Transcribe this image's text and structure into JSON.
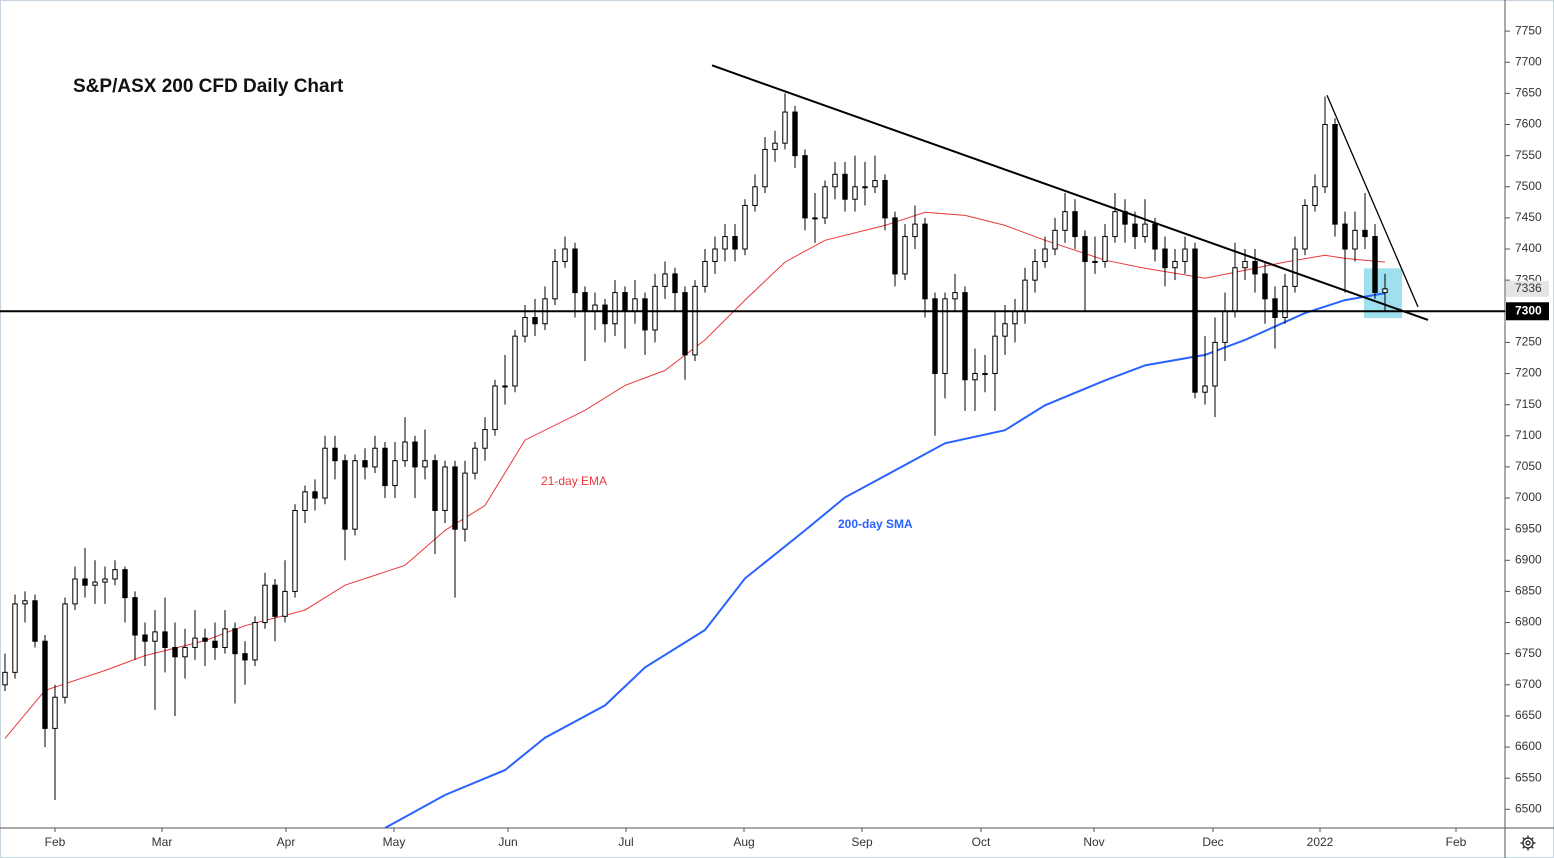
{
  "chart_data": {
    "type": "candlestick",
    "title": "S&P/ASX 200 CFD Daily Chart",
    "ylim": [
      6470,
      7800
    ],
    "yticks": [
      6500,
      6550,
      6600,
      6650,
      6700,
      6750,
      6800,
      6850,
      6900,
      6950,
      7000,
      7050,
      7100,
      7150,
      7200,
      7250,
      7300,
      7350,
      7400,
      7450,
      7500,
      7550,
      7600,
      7650,
      7700,
      7750
    ],
    "xlim": [
      -0.5,
      150
    ],
    "xticks": [
      {
        "value": 5,
        "label": "Feb"
      },
      {
        "value": 15.7,
        "label": "Mar"
      },
      {
        "value": 28.1,
        "label": "Apr"
      },
      {
        "value": 38.9,
        "label": "May"
      },
      {
        "value": 50.3,
        "label": "Jun"
      },
      {
        "value": 62.1,
        "label": "Jul"
      },
      {
        "value": 73.9,
        "label": "Aug"
      },
      {
        "value": 85.7,
        "label": "Sep"
      },
      {
        "value": 97.6,
        "label": "Oct"
      },
      {
        "value": 108.9,
        "label": "Nov"
      },
      {
        "value": 120.8,
        "label": "Dec"
      },
      {
        "value": 131.5,
        "label": "2022"
      },
      {
        "value": 145.1,
        "label": "Feb"
      }
    ],
    "up_color": "#ffffff",
    "down_color": "#000000",
    "candles": {
      "open": [
        6700,
        6720,
        6830,
        6835,
        6770,
        6630,
        6680,
        6830,
        6870,
        6860,
        6865,
        6870,
        6885,
        6840,
        6780,
        6770,
        6785,
        6760,
        6745,
        6760,
        6775,
        6770,
        6760,
        6790,
        6750,
        6740,
        6800,
        6860,
        6810,
        6850,
        6980,
        7010,
        7000,
        7080,
        7060,
        6950,
        7060,
        7050,
        7080,
        7020,
        7060,
        7090,
        7050,
        7060,
        6980,
        7050,
        6950,
        7040,
        7080,
        7110,
        7180,
        7180,
        7260,
        7290,
        7280,
        7320,
        7380,
        7400,
        7330,
        7300,
        7310,
        7280,
        7330,
        7300,
        7320,
        7270,
        7340,
        7360,
        7330,
        7230,
        7340,
        7380,
        7400,
        7420,
        7400,
        7470,
        7500,
        7560,
        7570,
        7620,
        7550,
        7450,
        7450,
        7500,
        7520,
        7480,
        7500,
        7500,
        7510,
        7450,
        7360,
        7420,
        7440,
        7320,
        7200,
        7320,
        7330,
        7190,
        7200,
        7200,
        7260,
        7280,
        7300,
        7350,
        7380,
        7400,
        7430,
        7460,
        7420,
        7380,
        7380,
        7420,
        7460,
        7440,
        7420,
        7440,
        7400,
        7370,
        7380,
        7400,
        7170,
        7180,
        7250,
        7300,
        7370,
        7380,
        7360,
        7320,
        7290,
        7340,
        7400,
        7470,
        7500,
        7600,
        7440,
        7400,
        7430,
        7420,
        7330
      ],
      "high": [
        6750,
        6845,
        6850,
        6845,
        6780,
        6700,
        6840,
        6890,
        6920,
        6900,
        6890,
        6900,
        6890,
        6850,
        6800,
        6820,
        6840,
        6800,
        6790,
        6820,
        6790,
        6800,
        6820,
        6800,
        6770,
        6810,
        6880,
        6870,
        6900,
        6990,
        7020,
        7030,
        7100,
        7100,
        7070,
        7070,
        7080,
        7100,
        7090,
        7090,
        7130,
        7100,
        7110,
        7070,
        7060,
        7060,
        7060,
        7090,
        7130,
        7190,
        7230,
        7270,
        7310,
        7320,
        7340,
        7400,
        7420,
        7410,
        7340,
        7330,
        7320,
        7350,
        7340,
        7350,
        7330,
        7360,
        7380,
        7370,
        7340,
        7350,
        7400,
        7420,
        7440,
        7440,
        7480,
        7520,
        7580,
        7590,
        7650,
        7630,
        7560,
        7490,
        7510,
        7540,
        7540,
        7550,
        7540,
        7550,
        7520,
        7460,
        7440,
        7470,
        7450,
        7330,
        7330,
        7360,
        7340,
        7240,
        7230,
        7300,
        7310,
        7320,
        7370,
        7400,
        7420,
        7450,
        7490,
        7480,
        7430,
        7420,
        7440,
        7490,
        7480,
        7460,
        7480,
        7450,
        7420,
        7400,
        7420,
        7410,
        7260,
        7290,
        7330,
        7410,
        7400,
        7400,
        7380,
        7340,
        7360,
        7420,
        7480,
        7520,
        7645,
        7610,
        7460,
        7460,
        7490,
        7440,
        7360
      ],
      "low": [
        6690,
        6710,
        6800,
        6760,
        6600,
        6515,
        6670,
        6820,
        6840,
        6830,
        6830,
        6860,
        6800,
        6740,
        6730,
        6660,
        6720,
        6650,
        6710,
        6740,
        6730,
        6740,
        6750,
        6670,
        6700,
        6730,
        6790,
        6770,
        6800,
        6840,
        6960,
        6980,
        6990,
        7030,
        6900,
        6940,
        7030,
        7040,
        7000,
        7000,
        7050,
        7000,
        7030,
        6910,
        6960,
        6840,
        6930,
        7030,
        7060,
        7100,
        7150,
        7170,
        7250,
        7260,
        7270,
        7310,
        7370,
        7290,
        7220,
        7270,
        7250,
        7260,
        7240,
        7280,
        7230,
        7250,
        7320,
        7300,
        7190,
        7220,
        7330,
        7360,
        7380,
        7380,
        7390,
        7460,
        7490,
        7540,
        7560,
        7530,
        7430,
        7410,
        7440,
        7480,
        7460,
        7460,
        7470,
        7490,
        7430,
        7340,
        7350,
        7400,
        7290,
        7100,
        7160,
        7300,
        7140,
        7140,
        7170,
        7140,
        7230,
        7250,
        7280,
        7330,
        7370,
        7390,
        7410,
        7400,
        7300,
        7360,
        7370,
        7410,
        7410,
        7400,
        7410,
        7380,
        7340,
        7350,
        7360,
        7160,
        7150,
        7130,
        7220,
        7290,
        7350,
        7330,
        7280,
        7240,
        7280,
        7330,
        7390,
        7460,
        7490,
        7420,
        7330,
        7380,
        7400,
        7320,
        7300
      ],
      "close": [
        6720,
        6830,
        6835,
        6770,
        6630,
        6680,
        6830,
        6870,
        6860,
        6865,
        6870,
        6885,
        6840,
        6780,
        6770,
        6785,
        6760,
        6745,
        6760,
        6775,
        6770,
        6760,
        6790,
        6750,
        6740,
        6800,
        6860,
        6810,
        6850,
        6980,
        7010,
        7000,
        7080,
        7060,
        6950,
        7060,
        7050,
        7080,
        7020,
        7060,
        7090,
        7050,
        7060,
        6980,
        7050,
        6950,
        7040,
        7080,
        7110,
        7180,
        7180,
        7260,
        7290,
        7280,
        7320,
        7380,
        7400,
        7330,
        7300,
        7310,
        7280,
        7330,
        7300,
        7320,
        7270,
        7340,
        7360,
        7330,
        7230,
        7340,
        7380,
        7400,
        7420,
        7400,
        7470,
        7500,
        7560,
        7570,
        7620,
        7550,
        7450,
        7450,
        7500,
        7520,
        7480,
        7500,
        7500,
        7510,
        7450,
        7360,
        7420,
        7440,
        7320,
        7200,
        7320,
        7330,
        7190,
        7200,
        7200,
        7260,
        7280,
        7300,
        7350,
        7380,
        7400,
        7430,
        7460,
        7420,
        7380,
        7380,
        7420,
        7460,
        7440,
        7420,
        7440,
        7400,
        7370,
        7380,
        7400,
        7170,
        7180,
        7250,
        7300,
        7370,
        7380,
        7360,
        7320,
        7290,
        7340,
        7400,
        7470,
        7500,
        7600,
        7440,
        7400,
        7430,
        7420,
        7330,
        7336
      ]
    },
    "series": [
      {
        "name": "21-day EMA",
        "color": "#e8393c",
        "x": [
          0,
          4,
          10,
          14,
          20,
          24,
          30,
          34,
          40,
          44,
          48,
          52,
          58,
          62,
          66,
          70,
          74,
          78,
          82,
          88,
          92,
          96,
          100,
          104,
          110,
          114,
          120,
          124,
          128,
          132,
          134,
          138
        ],
        "values": [
          6614,
          6691,
          6723,
          6747,
          6771,
          6795,
          6820,
          6860,
          6892,
          6948,
          6988,
          7093,
          7141,
          7181,
          7205,
          7254,
          7318,
          7379,
          7414,
          7438,
          7459,
          7454,
          7438,
          7414,
          7382,
          7369,
          7353,
          7366,
          7379,
          7390,
          7385,
          7379
        ]
      },
      {
        "name": "200-day SMA",
        "color": "#2962ff",
        "x": [
          38,
          44,
          50,
          54,
          60,
          64,
          70,
          74,
          80,
          84,
          90,
          94,
          100,
          104,
          110,
          114,
          120,
          124,
          130,
          134,
          138
        ],
        "values": [
          6470,
          6523,
          6563,
          6615,
          6667,
          6728,
          6788,
          6871,
          6948,
          7001,
          7053,
          7088,
          7109,
          7149,
          7189,
          7213,
          7230,
          7254,
          7297,
          7318,
          7329
        ]
      }
    ],
    "horizontal_line": 7300,
    "trendlines": [
      {
        "x": [
          70.7,
          142.3
        ],
        "y": [
          7695,
          7286
        ]
      },
      {
        "x": [
          132.2,
          141.3
        ],
        "y": [
          7647,
          7307
        ]
      }
    ],
    "highlight": {
      "x": [
        135.9,
        139.7
      ],
      "y": [
        7289,
        7369
      ]
    }
  }
}
